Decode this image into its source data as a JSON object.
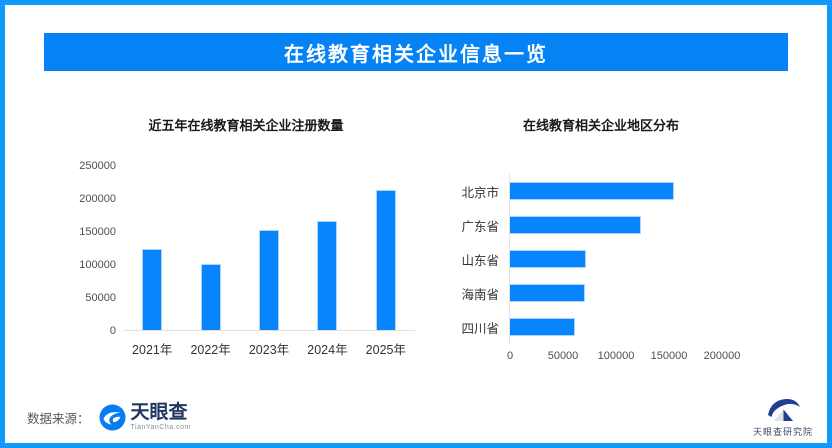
{
  "page": {
    "header_title": "在线教育相关企业信息一览"
  },
  "colors": {
    "frame_border": "#0f9bfc",
    "banner_bg": "#0583f5",
    "bar_fill": "#0885fc",
    "axis_line": "#e2e2e2",
    "tick_text": "#4a5058",
    "brand_navy": "#22375f",
    "institute_navy": "#1f3f93"
  },
  "chart_data": [
    {
      "type": "bar",
      "orientation": "vertical",
      "title": "近五年在线教育相关企业注册数量",
      "categories": [
        "2021年",
        "2022年",
        "2023年",
        "2024年",
        "2025年"
      ],
      "values": [
        124000,
        100000,
        153000,
        166000,
        214000
      ],
      "xlabel": "",
      "ylabel": "",
      "ylim": [
        0,
        250000
      ],
      "yticks": [
        0,
        50000,
        100000,
        150000,
        200000,
        250000
      ],
      "grid": false,
      "legend": null
    },
    {
      "type": "bar",
      "orientation": "horizontal",
      "title": "在线教育相关企业地区分布",
      "categories": [
        "北京市",
        "广东省",
        "山东省",
        "海南省",
        "四川省"
      ],
      "values": [
        155000,
        124000,
        72000,
        71000,
        62000
      ],
      "xlabel": "",
      "ylabel": "",
      "xlim": [
        0,
        200000
      ],
      "xticks": [
        0,
        50000,
        100000,
        150000,
        200000
      ],
      "grid": false,
      "legend": null
    }
  ],
  "footer": {
    "source_label": "数据来源：",
    "source_brand": "天眼查",
    "source_brand_sub": "TianYanCha.com",
    "institute_label": "天眼查研究院"
  }
}
